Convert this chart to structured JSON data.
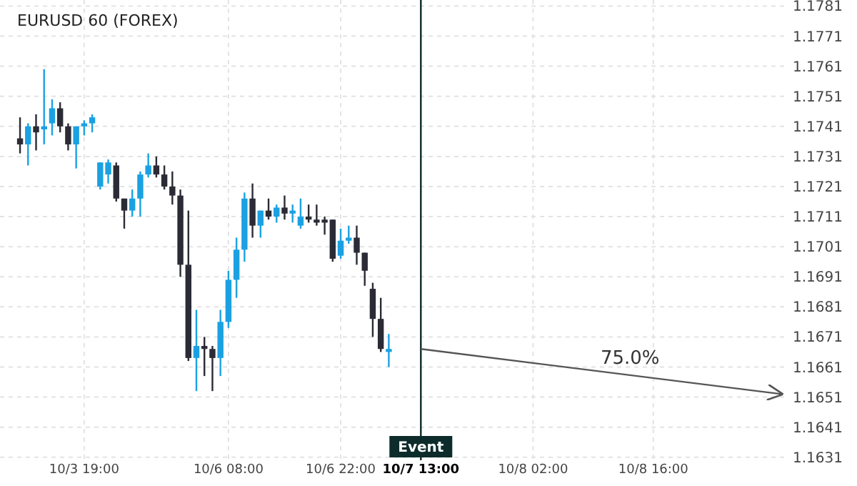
{
  "chart_data": {
    "type": "candlestick",
    "title": "EURUSD 60 (FOREX)",
    "categories": [
      null,
      null,
      null,
      null,
      null,
      null,
      null,
      null,
      null,
      null,
      "10/3 19:00",
      null,
      null,
      null,
      null,
      null,
      null,
      null,
      null,
      null,
      null,
      null,
      null,
      null,
      null,
      null,
      null,
      null,
      "10/6 08:00",
      null,
      null,
      null,
      null,
      null,
      null,
      null,
      null,
      null,
      null,
      null,
      null,
      null,
      "10/6 22:00",
      null,
      null,
      null,
      null,
      null,
      null,
      null,
      null,
      null,
      "10/7 13:00",
      null,
      null,
      null,
      null,
      null,
      null,
      null,
      null,
      null,
      null,
      null,
      null,
      null,
      "10/8 02:00",
      null,
      null,
      null,
      null,
      null,
      null,
      null,
      null,
      null,
      null,
      null,
      null,
      null,
      null,
      "10/8 16:00",
      null,
      null,
      null,
      null,
      null,
      null,
      null,
      null,
      null,
      null,
      null,
      null,
      null,
      null,
      null,
      null
    ],
    "ohlc": [
      null,
      null,
      [
        1.1737,
        1.1744,
        1.1732,
        1.1735
      ],
      [
        1.1735,
        1.1742,
        1.1728,
        1.1741
      ],
      [
        1.1741,
        1.1745,
        1.1733,
        1.1739
      ],
      [
        1.174,
        1.176,
        1.1735,
        1.1741
      ],
      [
        1.1742,
        1.175,
        1.1738,
        1.1747
      ],
      [
        1.1747,
        1.1749,
        1.1739,
        1.1741
      ],
      [
        1.1741,
        1.1742,
        1.1733,
        1.1735
      ],
      [
        1.1735,
        1.1741,
        1.1727,
        1.1741
      ],
      [
        1.1741,
        1.1743,
        1.1738,
        1.1742
      ],
      [
        1.1742,
        1.1745,
        1.1739,
        1.1744
      ],
      [
        1.1721,
        1.1729,
        1.172,
        1.1729
      ],
      [
        1.1725,
        1.173,
        1.1722,
        1.1729
      ],
      [
        1.1728,
        1.1729,
        1.1716,
        1.1717
      ],
      [
        1.1717,
        1.1717,
        1.1707,
        1.1713
      ],
      [
        1.1713,
        1.172,
        1.1711,
        1.1717
      ],
      [
        1.1717,
        1.1726,
        1.1711,
        1.1725
      ],
      [
        1.1725,
        1.1732,
        1.1724,
        1.1728
      ],
      [
        1.1728,
        1.1731,
        1.1724,
        1.1725
      ],
      [
        1.1725,
        1.1728,
        1.172,
        1.1721
      ],
      [
        1.1721,
        1.1726,
        1.1715,
        1.1718
      ],
      [
        1.1718,
        1.172,
        1.1691,
        1.1695
      ],
      [
        1.1695,
        1.1713,
        1.1663,
        1.1664
      ],
      [
        1.1664,
        1.168,
        1.1653,
        1.1668
      ],
      [
        1.1668,
        1.1671,
        1.1658,
        1.1667
      ],
      [
        1.1667,
        1.1668,
        1.1653,
        1.1664
      ],
      [
        1.1664,
        1.168,
        1.1658,
        1.1676
      ],
      [
        1.1676,
        1.1693,
        1.1674,
        1.169
      ],
      [
        1.169,
        1.1704,
        1.1684,
        1.17
      ],
      [
        1.17,
        1.1719,
        1.1696,
        1.1717
      ],
      [
        1.1717,
        1.1722,
        1.1704,
        1.1708
      ],
      [
        1.1708,
        1.1713,
        1.1704,
        1.1713
      ],
      [
        1.1713,
        1.1717,
        1.171,
        1.1711
      ],
      [
        1.1711,
        1.1715,
        1.1709,
        1.1714
      ],
      [
        1.1714,
        1.1718,
        1.171,
        1.1712
      ],
      [
        1.1712,
        1.1715,
        1.1709,
        1.1713
      ],
      [
        1.1708,
        1.1717,
        1.1707,
        1.1711
      ],
      [
        1.1711,
        1.1715,
        1.1709,
        1.171
      ],
      [
        1.171,
        1.1715,
        1.1708,
        1.1709
      ],
      [
        1.171,
        1.1711,
        1.1705,
        1.1709
      ],
      [
        1.171,
        1.171,
        1.1696,
        1.1697
      ],
      [
        1.1698,
        1.1707,
        1.1697,
        1.1703
      ],
      [
        1.1703,
        1.1708,
        1.1702,
        1.1704
      ],
      [
        1.1704,
        1.1708,
        1.1695,
        1.1699
      ],
      [
        1.1699,
        1.1699,
        1.1688,
        1.1693
      ],
      [
        1.1687,
        1.1689,
        1.1671,
        1.1677
      ],
      [
        1.1677,
        1.1684,
        1.1666,
        1.1667
      ],
      [
        1.1666,
        1.1672,
        1.1661,
        1.1667
      ],
      null,
      null,
      null,
      null,
      null,
      null,
      null,
      null,
      null,
      null,
      null,
      null,
      null,
      null,
      null,
      null,
      null,
      null,
      null,
      null,
      null,
      null,
      null,
      null,
      null,
      null,
      null,
      null,
      null,
      null,
      null,
      null,
      null,
      null,
      null,
      null,
      null,
      null,
      null,
      null,
      null,
      null,
      null,
      null,
      null,
      null,
      null,
      null,
      null
    ],
    "colors": [
      null,
      null,
      "#2b2b36",
      "#1ba1e2",
      "#2b2b36",
      "#1ba1e2",
      "#1ba1e2",
      "#2b2b36",
      "#2b2b36",
      "#1ba1e2",
      "#1ba1e2",
      "#1ba1e2",
      "#1ba1e2",
      "#1ba1e2",
      "#2b2b36",
      "#2b2b36",
      "#1ba1e2",
      "#1ba1e2",
      "#1ba1e2",
      "#2b2b36",
      "#2b2b36",
      "#2b2b36",
      "#2b2b36",
      "#2b2b36",
      "#1ba1e2",
      "#2b2b36",
      "#2b2b36",
      "#1ba1e2",
      "#1ba1e2",
      "#1ba1e2",
      "#1ba1e2",
      "#2b2b36",
      "#1ba1e2",
      "#2b2b36",
      "#1ba1e2",
      "#2b2b36",
      "#1ba1e2",
      "#1ba1e2",
      "#2b2b36",
      "#2b2b36",
      "#2b2b36",
      "#2b2b36",
      "#1ba1e2",
      "#1ba1e2",
      "#2b2b36",
      "#2b2b36",
      "#2b2b36",
      "#2b2b36",
      "#1ba1e2",
      null,
      null,
      null,
      null,
      null,
      null,
      null,
      null,
      null,
      null,
      null,
      null,
      null,
      null,
      null,
      null,
      null,
      null,
      null,
      null,
      null,
      null,
      null,
      null,
      null,
      null,
      null,
      null,
      null,
      null,
      null,
      null,
      null,
      null,
      null,
      null,
      null,
      null,
      null,
      null,
      null,
      null,
      null,
      null,
      null,
      null,
      null,
      null,
      null
    ],
    "series": [
      {
        "type": "line",
        "color": "#555555",
        "values": [
          null,
          null,
          null,
          null,
          null,
          null,
          null,
          null,
          null,
          null,
          null,
          null,
          null,
          null,
          null,
          null,
          null,
          null,
          null,
          null,
          null,
          null,
          null,
          null,
          null,
          null,
          null,
          null,
          null,
          null,
          null,
          null,
          null,
          null,
          null,
          null,
          null,
          null,
          null,
          null,
          null,
          null,
          null,
          null,
          null,
          null,
          null,
          null,
          null,
          null,
          null,
          null,
          1.1667,
          null,
          null,
          null,
          null,
          null,
          null,
          null,
          null,
          null,
          null,
          null,
          null,
          null,
          null,
          null,
          null,
          null,
          null,
          null,
          null,
          null,
          null,
          null,
          null,
          null,
          null,
          null,
          null,
          null,
          null,
          null,
          null,
          null,
          null,
          null,
          null,
          null,
          null,
          null,
          null,
          null,
          null,
          null,
          null,
          1.1652
        ]
      }
    ],
    "annotations": [
      "75.0%"
    ],
    "ref_lines": [
      {
        "axis": "x",
        "value": "10/7 13:00",
        "label": "Event",
        "color": "#0d2b2b"
      }
    ],
    "ylim": [
      1.163,
      1.1783
    ],
    "yticks": [
      1.1631,
      1.1641,
      1.1651,
      1.1661,
      1.1671,
      1.1681,
      1.1691,
      1.1701,
      1.1711,
      1.1721,
      1.1731,
      1.1741,
      1.1751,
      1.1761,
      1.1771,
      1.1781
    ],
    "grid": true
  }
}
